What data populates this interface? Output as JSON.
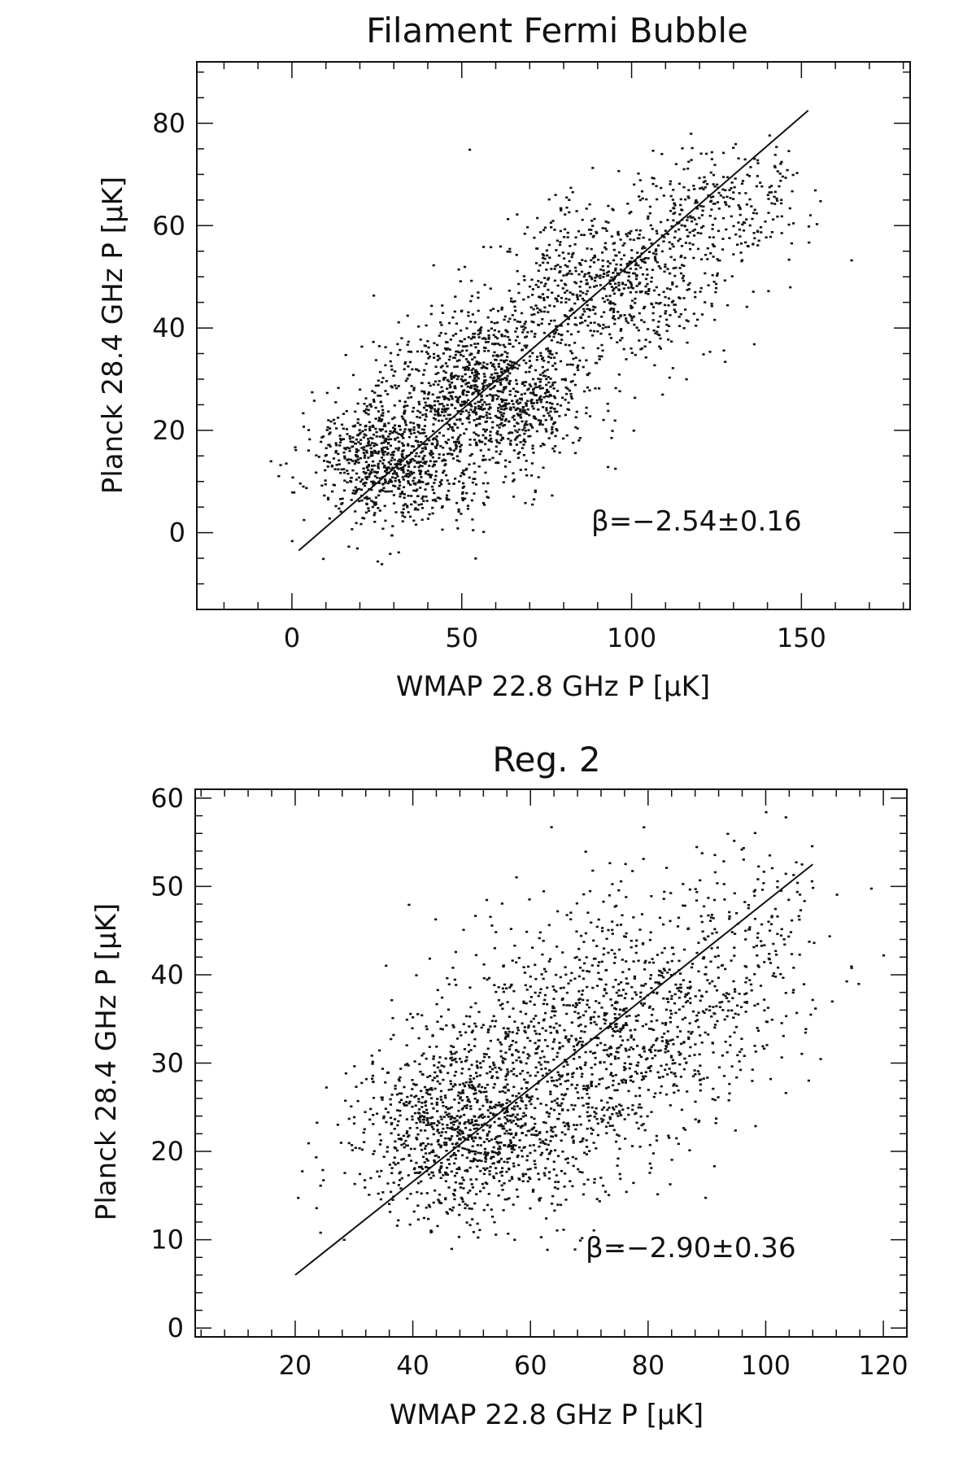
{
  "chart_data": [
    {
      "type": "scatter",
      "title": "Filament Fermi Bubble",
      "xlabel": "WMAP 22.8 GHz P [μK]",
      "ylabel": "Planck 28.4 GHz P [μK]",
      "xlim": [
        -28,
        182
      ],
      "ylim": [
        -15,
        92
      ],
      "xticks": [
        0,
        50,
        100,
        150
      ],
      "yticks": [
        0,
        20,
        40,
        60,
        80
      ],
      "x_minor_step": 10,
      "y_minor_step": 5,
      "annotation": "β=−2.54±0.16",
      "fit_line": {
        "x": [
          2,
          152
        ],
        "y": [
          -3.5,
          82.5
        ]
      },
      "clusters": [
        {
          "n": 850,
          "x": [
            30,
            12
          ],
          "y": [
            14,
            6.5
          ]
        },
        {
          "n": 1150,
          "x": [
            60,
            14
          ],
          "y": [
            28,
            7.5
          ]
        },
        {
          "n": 700,
          "x": [
            95,
            16
          ],
          "y": [
            49,
            7.5
          ]
        },
        {
          "n": 280,
          "x": [
            128,
            12
          ],
          "y": [
            64,
            6.5
          ]
        }
      ],
      "seed": 71
    },
    {
      "type": "scatter",
      "title": "Reg. 2",
      "xlabel": "WMAP 22.8 GHz P [μK]",
      "ylabel": "Planck 28.4 GHz P [μK]",
      "xlim": [
        3,
        124
      ],
      "ylim": [
        -1,
        61
      ],
      "xticks": [
        20,
        40,
        60,
        80,
        100,
        120
      ],
      "yticks": [
        0,
        10,
        20,
        30,
        40,
        50,
        60
      ],
      "x_minor_step": 4,
      "y_minor_step": 2,
      "annotation": "β=−2.90±0.36",
      "fit_line": {
        "x": [
          20,
          108
        ],
        "y": [
          6,
          52.5
        ]
      },
      "clusters": [
        {
          "n": 950,
          "x": [
            48,
            9
          ],
          "y": [
            22,
            5
          ]
        },
        {
          "n": 900,
          "x": [
            65,
            12
          ],
          "y": [
            30,
            7
          ]
        },
        {
          "n": 500,
          "x": [
            82,
            11
          ],
          "y": [
            37,
            7
          ]
        },
        {
          "n": 140,
          "x": [
            98,
            7
          ],
          "y": [
            44,
            6
          ]
        }
      ],
      "seed": 913
    }
  ]
}
